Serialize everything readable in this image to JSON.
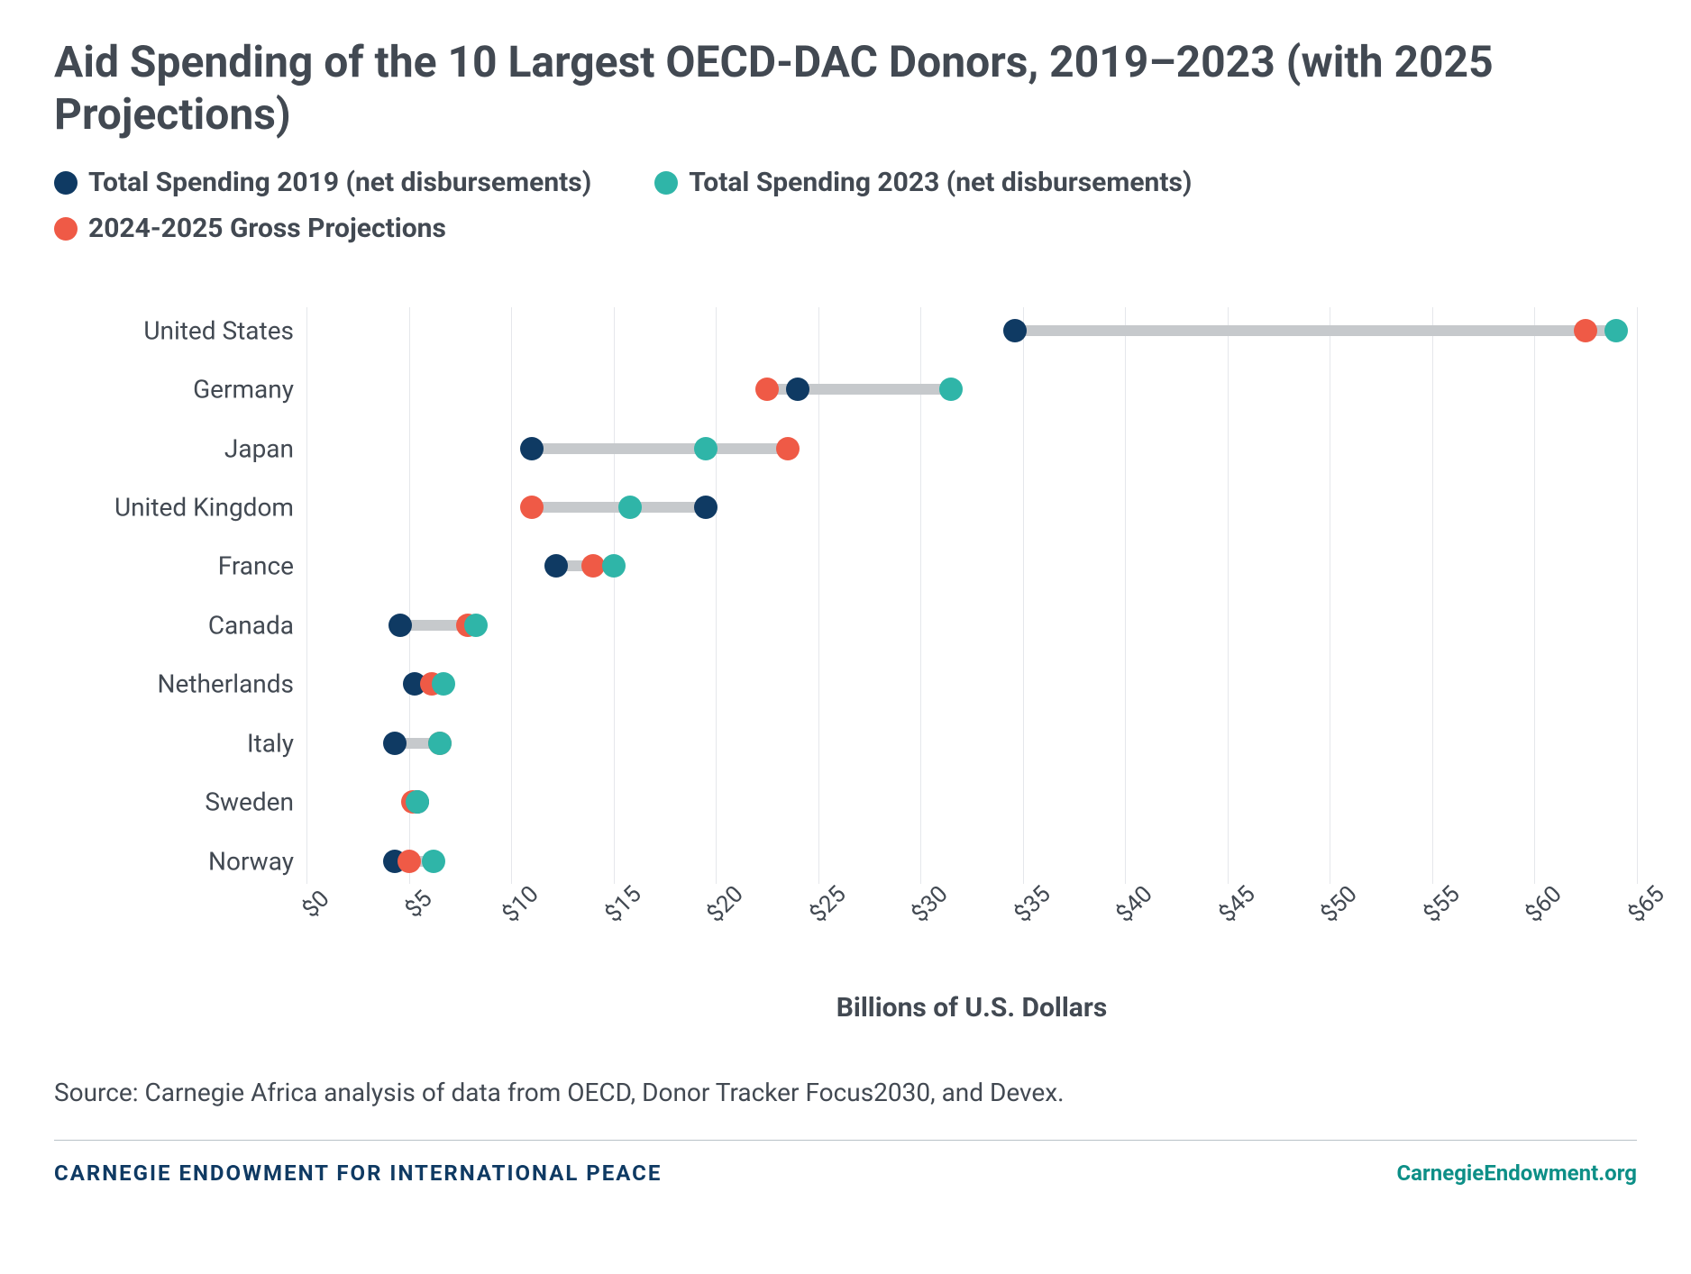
{
  "title": "Aid Spending of the 10 Largest OECD-DAC Donors, 2019–2023 (with 2025 Projections)",
  "legend": [
    {
      "label": "Total Spending 2019 (net disbursements)",
      "color": "#0f3a63"
    },
    {
      "label": "Total Spending 2023 (net disbursements)",
      "color": "#2fb5a8"
    },
    {
      "label": "2024-2025 Gross Projections",
      "color": "#ef5a46"
    }
  ],
  "chart": {
    "type": "dumbbell",
    "xlim": [
      0,
      65
    ],
    "xtick_step": 5,
    "xticks": [
      "$0",
      "$5",
      "$10",
      "$15",
      "$20",
      "$25",
      "$30",
      "$35",
      "$40",
      "$45",
      "$50",
      "$55",
      "$60",
      "$65"
    ],
    "xlabel": "Billions of U.S. Dollars",
    "grid_color": "#e5e7eb",
    "connector_color": "#c6c9cc",
    "connector_width": 12,
    "dot_radius": 13,
    "background_color": "#ffffff",
    "label_fontsize": 28,
    "tick_fontsize": 26,
    "rows": [
      {
        "name": "United States",
        "v2019": 34.6,
        "v2023": 64.0,
        "proj": 62.5
      },
      {
        "name": "Germany",
        "v2019": 24.0,
        "v2023": 31.5,
        "proj": 22.5
      },
      {
        "name": "Japan",
        "v2019": 11.0,
        "v2023": 19.5,
        "proj": 23.5
      },
      {
        "name": "United Kingdom",
        "v2019": 19.5,
        "v2023": 15.8,
        "proj": 11.0
      },
      {
        "name": "France",
        "v2019": 12.2,
        "v2023": 15.0,
        "proj": 14.0
      },
      {
        "name": "Canada",
        "v2019": 4.6,
        "v2023": 8.3,
        "proj": 7.9
      },
      {
        "name": "Netherlands",
        "v2019": 5.3,
        "v2023": 6.7,
        "proj": 6.1
      },
      {
        "name": "Italy",
        "v2019": 4.3,
        "v2023": 6.5,
        "proj": 6.5
      },
      {
        "name": "Sweden",
        "v2019": 5.4,
        "v2023": 5.4,
        "proj": 5.2
      },
      {
        "name": "Norway",
        "v2019": 4.3,
        "v2023": 6.2,
        "proj": 5.0
      }
    ],
    "series_colors": {
      "v2019": "#0f3a63",
      "v2023": "#2fb5a8",
      "proj": "#ef5a46"
    }
  },
  "source": "Source: Carnegie Africa analysis of data from OECD, Donor Tracker Focus2030, and Devex.",
  "footer": {
    "org": "CARNEGIE ENDOWMENT FOR INTERNATIONAL PEACE",
    "url": "CarnegieEndowment.org",
    "org_color": "#0f3a63",
    "url_color": "#0d8f87"
  }
}
